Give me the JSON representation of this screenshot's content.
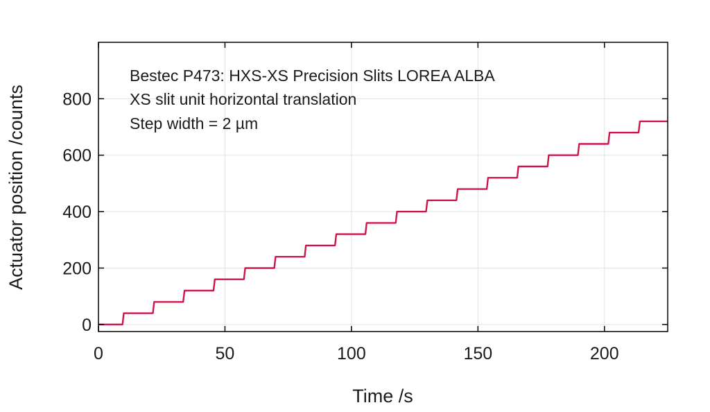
{
  "chart_data": {
    "type": "line",
    "xlabel": "Time /s",
    "ylabel": "Actuator position /counts",
    "xlim": [
      0,
      225
    ],
    "ylim": [
      -25,
      1000
    ],
    "x_ticks": [
      0,
      50,
      100,
      150,
      200
    ],
    "y_ticks": [
      0,
      200,
      400,
      600,
      800
    ],
    "grid": true,
    "annotations": [
      "Bestec P473: HXS-XS Precision Slits LOREA ALBA",
      "XS slit unit horizontal translation",
      "Step width = 2 µm"
    ],
    "series": [
      {
        "color": "#d0144a",
        "x": [
          0,
          9.5,
          10,
          21.5,
          22,
          33.5,
          34,
          45.5,
          46,
          57.5,
          58,
          69.5,
          70,
          81.5,
          82,
          93.5,
          94,
          105.5,
          106,
          117.5,
          118,
          129.5,
          130,
          141.5,
          142,
          153.5,
          154,
          165.5,
          166,
          177.5,
          178,
          189.5,
          190,
          201.5,
          202,
          213.5,
          214,
          225
        ],
        "y": [
          0,
          0,
          40,
          40,
          80,
          80,
          120,
          120,
          160,
          160,
          200,
          200,
          240,
          240,
          280,
          280,
          320,
          320,
          360,
          360,
          400,
          400,
          440,
          440,
          480,
          480,
          520,
          520,
          560,
          560,
          600,
          600,
          640,
          640,
          680,
          680,
          720,
          720
        ]
      }
    ]
  }
}
